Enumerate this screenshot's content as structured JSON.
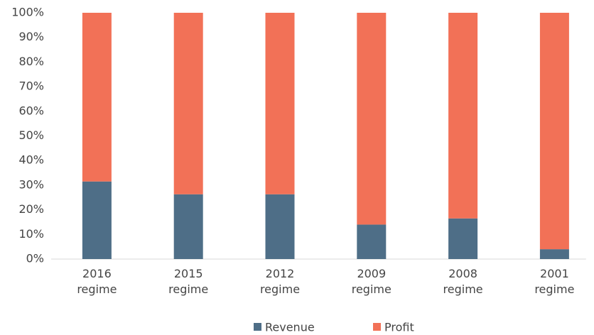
{
  "chart_data": {
    "type": "stacked_bar_percent",
    "categories": [
      "2016 regime",
      "2015 regime",
      "2012 regime",
      "2009 regime",
      "2008 regime",
      "2001 regime"
    ],
    "series": [
      {
        "name": "Revenue",
        "color": "#4e6e87",
        "values": [
          31.5,
          26.3,
          26.3,
          14,
          16.5,
          4
        ]
      },
      {
        "name": "Profit",
        "color": "#f27157",
        "values": [
          68.5,
          73.7,
          73.7,
          86,
          83.5,
          96
        ]
      }
    ],
    "ylim": [
      0,
      100
    ],
    "yticks": [
      {
        "value": 0,
        "label": "0%"
      },
      {
        "value": 10,
        "label": "10%"
      },
      {
        "value": 20,
        "label": "20%"
      },
      {
        "value": 30,
        "label": "30%"
      },
      {
        "value": 40,
        "label": "40%"
      },
      {
        "value": 50,
        "label": "50%"
      },
      {
        "value": 60,
        "label": "60%"
      },
      {
        "value": 70,
        "label": "70%"
      },
      {
        "value": 80,
        "label": "80%"
      },
      {
        "value": 90,
        "label": "90%"
      },
      {
        "value": 100,
        "label": "100%"
      }
    ],
    "grid": false,
    "legend": "bottom"
  }
}
